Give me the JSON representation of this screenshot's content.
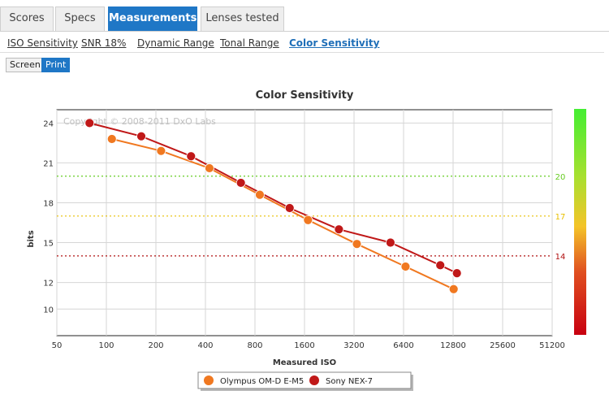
{
  "tabs": [
    {
      "label": "Scores",
      "active": false
    },
    {
      "label": "Specs",
      "active": false
    },
    {
      "label": "Measurements",
      "active": true
    },
    {
      "label": "Lenses tested",
      "active": false
    }
  ],
  "subnav": [
    {
      "label": "ISO Sensitivity",
      "active": false
    },
    {
      "label": "SNR 18%",
      "active": false
    },
    {
      "label": "Dynamic Range",
      "active": false
    },
    {
      "label": "Tonal Range",
      "active": false
    },
    {
      "label": "Color Sensitivity",
      "active": true
    }
  ],
  "view_modes": [
    {
      "label": "Screen",
      "active": false
    },
    {
      "label": "Print",
      "active": true
    }
  ],
  "chart_data": {
    "type": "line",
    "title": "Color Sensitivity",
    "xlabel": "Measured ISO",
    "ylabel": "bits",
    "x_scale": "log2",
    "x_ticks": [
      50,
      100,
      200,
      400,
      800,
      1600,
      3200,
      6400,
      12800,
      25600,
      51200
    ],
    "y_ticks": [
      10,
      12,
      15,
      18,
      21,
      24
    ],
    "ylim": [
      8,
      25
    ],
    "watermark": "Copyright © 2008-2011 DxO Labs",
    "reference_lines": [
      {
        "value": 20,
        "label": "20",
        "color": "#66cc22"
      },
      {
        "value": 17,
        "label": "17",
        "color": "#e8c000"
      },
      {
        "value": 14,
        "label": "14",
        "color": "#b01010"
      }
    ],
    "legend_position": "bottom",
    "series": [
      {
        "name": "Olympus OM-D E-M5",
        "color": "#f07820",
        "points": [
          {
            "x": 108,
            "y": 22.8
          },
          {
            "x": 215,
            "y": 21.9
          },
          {
            "x": 423,
            "y": 20.6
          },
          {
            "x": 856,
            "y": 18.6
          },
          {
            "x": 1680,
            "y": 16.7
          },
          {
            "x": 3330,
            "y": 14.9
          },
          {
            "x": 6580,
            "y": 13.2
          },
          {
            "x": 12900,
            "y": 11.5
          }
        ]
      },
      {
        "name": "Sony NEX-7",
        "color": "#c01818",
        "points": [
          {
            "x": 79,
            "y": 24.0
          },
          {
            "x": 163,
            "y": 23.0
          },
          {
            "x": 327,
            "y": 21.5
          },
          {
            "x": 657,
            "y": 19.5
          },
          {
            "x": 1300,
            "y": 17.6
          },
          {
            "x": 2590,
            "y": 16.0
          },
          {
            "x": 5330,
            "y": 15.0
          },
          {
            "x": 10700,
            "y": 13.3
          },
          {
            "x": 13500,
            "y": 12.7
          }
        ]
      }
    ]
  }
}
